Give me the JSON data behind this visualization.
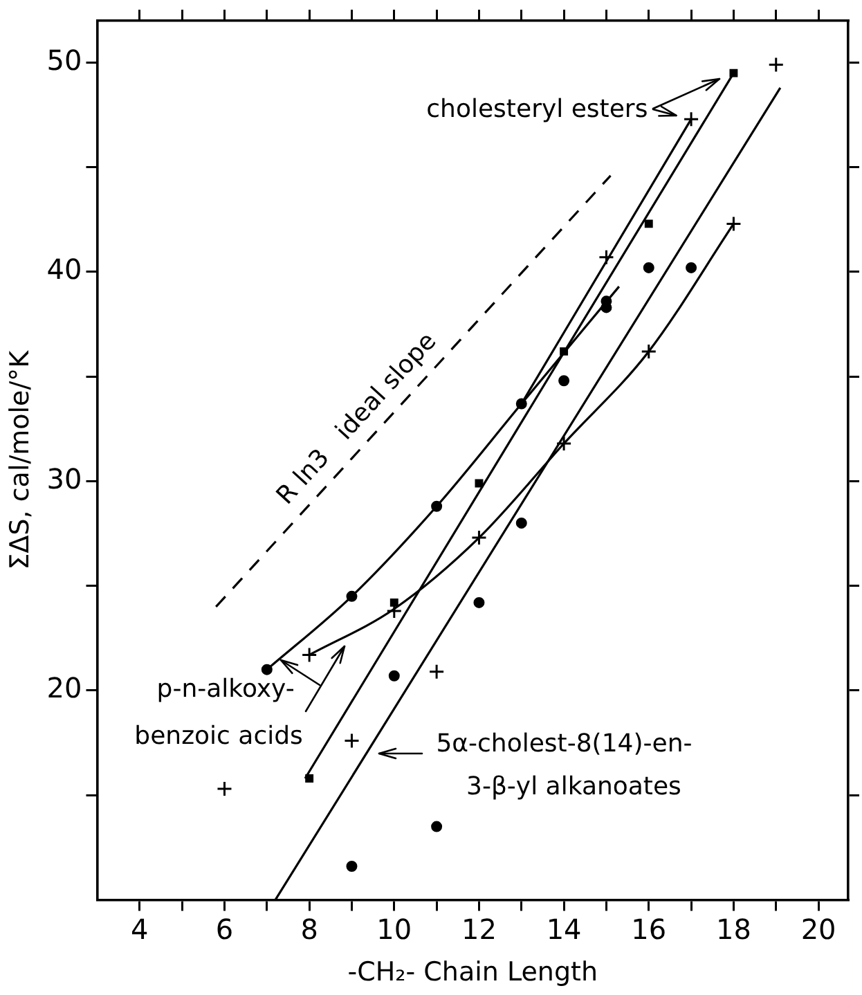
{
  "chart_data": {
    "type": "scatter",
    "xlabel": "-CH₂- Chain Length",
    "ylabel": "ΣΔS, cal/mole/°K",
    "xlim": [
      3,
      20.7
    ],
    "ylim": [
      10,
      52
    ],
    "xticks": [
      4,
      {
        "value": 5,
        "label": null
      },
      6,
      {
        "value": 7,
        "label": null
      },
      8,
      {
        "value": 9,
        "label": null
      },
      10,
      {
        "value": 11,
        "label": null
      },
      12,
      {
        "value": 13,
        "label": null
      },
      14,
      {
        "value": 15,
        "label": null
      },
      16,
      {
        "value": 17,
        "label": null
      },
      18,
      {
        "value": 19,
        "label": null
      },
      20
    ],
    "yticks": [
      {
        "value": 15,
        "label": null
      },
      20,
      {
        "value": 25,
        "label": null
      },
      30,
      {
        "value": 35,
        "label": null
      },
      40,
      {
        "value": 45,
        "label": null
      },
      50
    ],
    "grid": false,
    "legend": false,
    "series": [
      {
        "color": "#000000",
        "marker": "square",
        "x": [
          8,
          10,
          12,
          14,
          16,
          18
        ],
        "values": [
          15.8,
          24.2,
          29.9,
          36.2,
          42.3,
          49.5
        ]
      },
      {
        "color": "#000000",
        "marker": "cross",
        "x": [
          9,
          11,
          15,
          17,
          19
        ],
        "values": [
          17.6,
          20.9,
          40.7,
          47.3,
          49.9
        ]
      },
      {
        "color": "#000000",
        "marker": "circle",
        "x": [
          7,
          9,
          11,
          13,
          15
        ],
        "values": [
          21,
          24.5,
          28.8,
          33.7,
          38.6
        ]
      },
      {
        "color": "#000000",
        "marker": "cross",
        "x": [
          6,
          8,
          10,
          12,
          14,
          16,
          18
        ],
        "values": [
          15.3,
          21.7,
          23.8,
          27.3,
          31.8,
          36.2,
          42.3
        ]
      },
      {
        "color": "#000000",
        "marker": "circle",
        "x": [
          9,
          10,
          11,
          12,
          13,
          14,
          15,
          16,
          17
        ],
        "values": [
          11.6,
          20.7,
          13.5,
          24.2,
          28,
          34.8,
          38.3,
          40.2,
          40.2
        ]
      },
      {
        "type": "line",
        "color": "#000000",
        "marker": "none",
        "x": [
          7.9,
          18
        ],
        "values": [
          15.8,
          49.5
        ]
      },
      {
        "type": "line",
        "color": "#000000",
        "marker": "none",
        "x": [
          7,
          9,
          11,
          13,
          15.3
        ],
        "values": [
          21,
          24.5,
          28.8,
          33.7,
          39.3
        ]
      },
      {
        "type": "line",
        "color": "#000000",
        "marker": "none",
        "x": [
          13,
          17
        ],
        "values": [
          33.7,
          47.3
        ]
      },
      {
        "type": "line",
        "color": "#000000",
        "marker": "none",
        "x": [
          8,
          10,
          12,
          14,
          16,
          18
        ],
        "values": [
          21.7,
          23.9,
          27.3,
          31.8,
          36.2,
          42.3
        ]
      },
      {
        "type": "line",
        "color": "#000000",
        "marker": "none",
        "x": [
          7.2,
          19.1
        ],
        "values": [
          10,
          48.8
        ]
      },
      {
        "type": "line",
        "color": "#000000",
        "marker": "none",
        "line_style": "dashed",
        "x": [
          5.8,
          15.1
        ],
        "values": [
          24,
          44.6
        ]
      }
    ],
    "annotations": [
      "R ln3   ideal slope",
      "cholesteryl esters",
      "p-n-alkoxy-\nbenzoic acids",
      "5α-cholest-8(14)-en-\n3-β-yl alkanoates"
    ]
  }
}
